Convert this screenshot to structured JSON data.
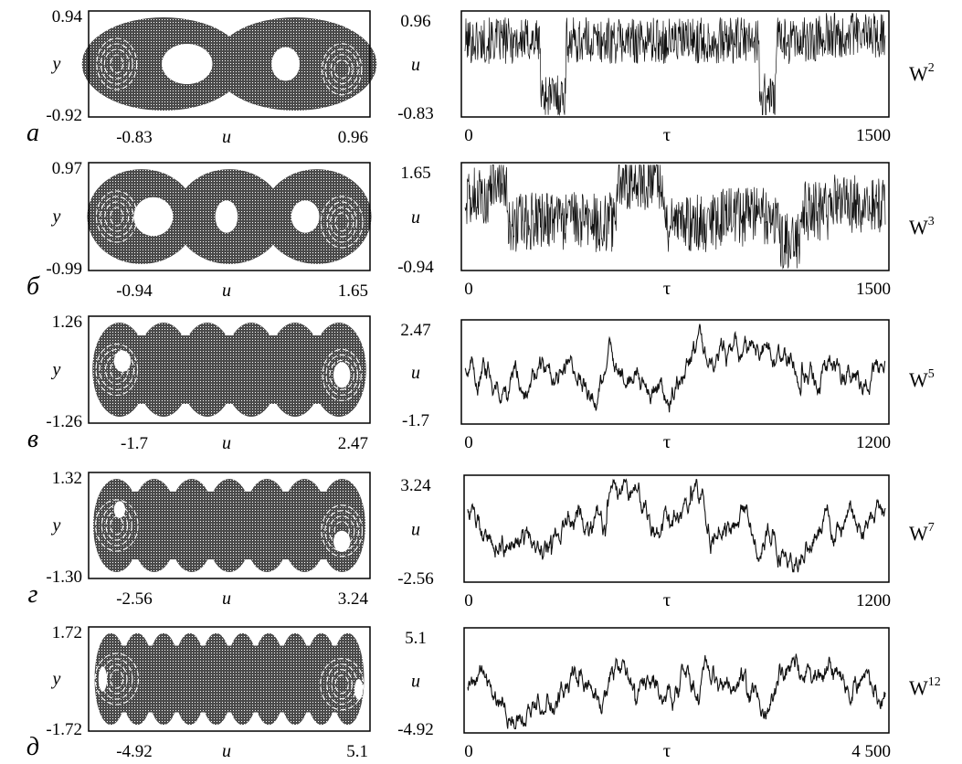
{
  "chart_data": [
    {
      "row_label": "а",
      "label": "W",
      "label_sup": "2",
      "portrait": {
        "type": "scatter",
        "xlabel": "u",
        "ylabel": "y",
        "xlim": [
          -0.83,
          0.96
        ],
        "ylim": [
          -0.92,
          0.94
        ],
        "x_ticks": [
          "-0.83",
          "0.96"
        ],
        "y_ticks": [
          "0.94",
          "-0.92"
        ]
      },
      "series": {
        "type": "line",
        "xlabel": "τ",
        "ylabel": "u",
        "xlim": [
          0,
          1500
        ],
        "ylim": [
          -0.83,
          0.96
        ],
        "x_ticks": [
          "0",
          "1500"
        ],
        "y_ticks": [
          "0.96",
          "-0.83"
        ]
      }
    },
    {
      "row_label": "б",
      "label": "W",
      "label_sup": "3",
      "portrait": {
        "type": "scatter",
        "xlabel": "u",
        "ylabel": "y",
        "xlim": [
          -0.94,
          1.65
        ],
        "ylim": [
          -0.99,
          0.97
        ],
        "x_ticks": [
          "-0.94",
          "1.65"
        ],
        "y_ticks": [
          "0.97",
          "-0.99"
        ]
      },
      "series": {
        "type": "line",
        "xlabel": "τ",
        "ylabel": "u",
        "xlim": [
          0,
          1500
        ],
        "ylim": [
          -0.94,
          1.65
        ],
        "x_ticks": [
          "0",
          "1500"
        ],
        "y_ticks": [
          "1.65",
          "-0.94"
        ]
      }
    },
    {
      "row_label": "в",
      "label": "W",
      "label_sup": "5",
      "portrait": {
        "type": "scatter",
        "xlabel": "u",
        "ylabel": "y",
        "xlim": [
          -1.7,
          2.47
        ],
        "ylim": [
          -1.26,
          1.26
        ],
        "x_ticks": [
          "-1.7",
          "2.47"
        ],
        "y_ticks": [
          "1.26",
          "-1.26"
        ]
      },
      "series": {
        "type": "line",
        "xlabel": "τ",
        "ylabel": "u",
        "xlim": [
          0,
          1200
        ],
        "ylim": [
          -1.7,
          2.47
        ],
        "x_ticks": [
          "0",
          "1200"
        ],
        "y_ticks": [
          "2.47",
          "-1.7"
        ]
      }
    },
    {
      "row_label": "г",
      "label": "W",
      "label_sup": "7",
      "portrait": {
        "type": "scatter",
        "xlabel": "u",
        "ylabel": "y",
        "xlim": [
          -2.56,
          3.24
        ],
        "ylim": [
          -1.3,
          1.32
        ],
        "x_ticks": [
          "-2.56",
          "3.24"
        ],
        "y_ticks": [
          "1.32",
          "-1.30"
        ]
      },
      "series": {
        "type": "line",
        "xlabel": "τ",
        "ylabel": "u",
        "xlim": [
          0,
          1200
        ],
        "ylim": [
          -2.56,
          3.24
        ],
        "x_ticks": [
          "0",
          "1200"
        ],
        "y_ticks": [
          "3.24",
          "-2.56"
        ]
      }
    },
    {
      "row_label": "д",
      "label": "W",
      "label_sup": "12",
      "portrait": {
        "type": "scatter",
        "xlabel": "u",
        "ylabel": "y",
        "xlim": [
          -4.92,
          5.1
        ],
        "ylim": [
          -1.72,
          1.72
        ],
        "x_ticks": [
          "-4.92",
          "5.1"
        ],
        "y_ticks": [
          "1.72",
          "-1.72"
        ]
      },
      "series": {
        "type": "line",
        "xlabel": "τ",
        "ylabel": "u",
        "xlim": [
          0,
          4500
        ],
        "ylim": [
          -4.92,
          5.1
        ],
        "x_ticks": [
          "0",
          "4 500"
        ],
        "y_ticks": [
          "5.1",
          "-4.92"
        ]
      }
    }
  ]
}
